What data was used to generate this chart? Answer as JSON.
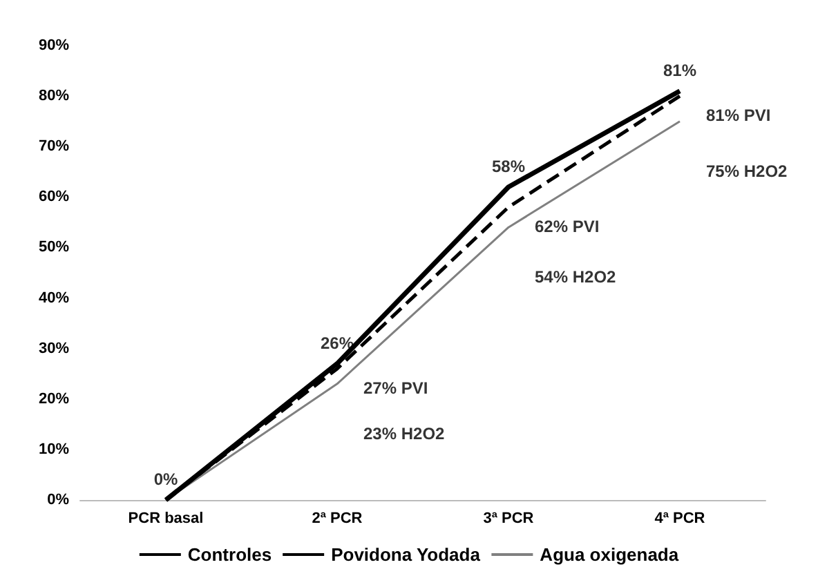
{
  "chart_data": {
    "type": "line",
    "categories": [
      "PCR basal",
      "2ª PCR",
      "3ª PCR",
      "4ª PCR"
    ],
    "series": [
      {
        "name": "Controles",
        "color": "#000000",
        "line_style": "solid",
        "values": [
          0,
          27,
          62,
          81
        ]
      },
      {
        "name": "Povidona Yodada",
        "color": "#000000",
        "line_style": "dashed",
        "values": [
          0,
          26,
          58,
          80
        ]
      },
      {
        "name": "Agua oxigenada",
        "color": "#808080",
        "line_style": "solid",
        "values": [
          0,
          23,
          54,
          75
        ]
      }
    ],
    "ylim": [
      0,
      90
    ],
    "yticks": [
      {
        "value": 0,
        "label": "0%"
      },
      {
        "value": 10,
        "label": "10%"
      },
      {
        "value": 20,
        "label": "20%"
      },
      {
        "value": 30,
        "label": "30%"
      },
      {
        "value": 40,
        "label": "40%"
      },
      {
        "value": 50,
        "label": "50%"
      },
      {
        "value": 60,
        "label": "60%"
      },
      {
        "value": 70,
        "label": "70%"
      },
      {
        "value": 80,
        "label": "80%"
      },
      {
        "value": 90,
        "label": "90%"
      }
    ],
    "grid": false,
    "legend": "bottom",
    "marker": "none",
    "annotations": [
      {
        "text": "0%",
        "x": "PCR basal",
        "y": 0
      },
      {
        "text": "26%",
        "x": "2ª PCR",
        "y": 27
      },
      {
        "text": "27% PVI",
        "x": "2ª PCR",
        "y": 26
      },
      {
        "text": "23% H2O2",
        "x": "2ª PCR",
        "y": 23
      },
      {
        "text": "58%",
        "x": "3ª PCR",
        "y": 62
      },
      {
        "text": "62% PVI",
        "x": "3ª PCR",
        "y": 58
      },
      {
        "text": "54% H2O2",
        "x": "3ª PCR",
        "y": 54
      },
      {
        "text": "81%",
        "x": "4ª PCR",
        "y": 81
      },
      {
        "text": "81% PVI",
        "x": "4ª PCR",
        "y": 80
      },
      {
        "text": "75% H2O2",
        "x": "4ª PCR",
        "y": 75
      }
    ]
  }
}
